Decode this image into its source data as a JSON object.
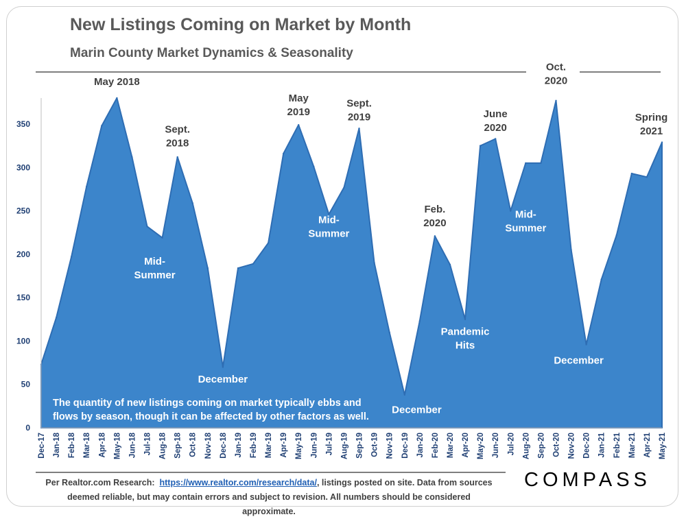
{
  "header": {
    "title": "New Listings Coming on Market by Month",
    "subtitle": "Marin County Market Dynamics & Seasonality"
  },
  "footer": {
    "prefix": "Per Realtor.com Research:",
    "link": "https://www.realtor.com/research/data/",
    "line1_suffix": ", listings posted on site. Data from sources",
    "line2": "deemed reliable, but may contain errors and subject to revision. All numbers should be considered approximate."
  },
  "brand": {
    "logo": "COMPASS"
  },
  "colors": {
    "area": "#3c85cb",
    "area_edge": "#2e6db3",
    "axis_text": "#1f3f73",
    "annotation_dark": "#404040",
    "annotation_light": "#ffffff",
    "rule": "#7f7f7f"
  },
  "chart_data": {
    "type": "area",
    "title": "New Listings Coming on Market by Month",
    "ylim": [
      0,
      380
    ],
    "yticks": [
      0,
      50,
      100,
      150,
      200,
      250,
      300,
      350
    ],
    "grid": false,
    "x": [
      "Dec-17",
      "Jan-18",
      "Feb-18",
      "Mar-18",
      "Apr-18",
      "May-18",
      "Jun-18",
      "Jul-18",
      "Aug-18",
      "Sep-18",
      "Oct-18",
      "Nov-18",
      "Dec-18",
      "Jan-19",
      "Feb-19",
      "Mar-19",
      "Apr-19",
      "May-19",
      "Jun-19",
      "Jul-19",
      "Aug-19",
      "Sep-19",
      "Oct-19",
      "Nov-19",
      "Dec-19",
      "Jan-20",
      "Feb-20",
      "Mar-20",
      "Apr-20",
      "May-20",
      "Jun-20",
      "Jul-20",
      "Aug-20",
      "Sep-20",
      "Oct-20",
      "Nov-20",
      "Dec-20",
      "Jan-21",
      "Feb-21",
      "Mar-21",
      "Apr-21",
      "May-21"
    ],
    "series": [
      {
        "values": [
          73,
          127,
          197,
          278,
          348,
          380,
          312,
          232,
          219,
          312,
          259,
          184,
          70,
          184,
          189,
          213,
          316,
          349,
          301,
          246,
          277,
          345,
          190,
          110,
          38,
          123,
          221,
          188,
          125,
          325,
          333,
          250,
          305,
          305,
          377,
          205,
          96,
          171,
          222,
          293,
          289,
          329
        ]
      }
    ],
    "annotations": [
      {
        "text": [
          "May 2018"
        ],
        "color": "dark",
        "index": 5,
        "value": 395
      },
      {
        "text": [
          "Sept.",
          "2018"
        ],
        "color": "dark",
        "index": 9,
        "value": 340
      },
      {
        "text": [
          "Mid-",
          "Summer"
        ],
        "color": "light",
        "index": 7.5,
        "value": 188
      },
      {
        "text": [
          "December"
        ],
        "color": "light",
        "index": 12,
        "value": 52
      },
      {
        "text": [
          "May",
          "2019"
        ],
        "color": "dark",
        "index": 17,
        "value": 376
      },
      {
        "text": [
          "Sept.",
          "2019"
        ],
        "color": "dark",
        "index": 21,
        "value": 370
      },
      {
        "text": [
          "Mid-",
          "Summer"
        ],
        "color": "light",
        "index": 19,
        "value": 236
      },
      {
        "text": [
          "December"
        ],
        "color": "light",
        "index": 24.8,
        "value": 17
      },
      {
        "text": [
          "Feb.",
          "2020"
        ],
        "color": "dark",
        "index": 26,
        "value": 248
      },
      {
        "text": [
          "Pandemic",
          "Hits"
        ],
        "color": "light",
        "index": 28,
        "value": 107
      },
      {
        "text": [
          "June",
          "2020"
        ],
        "color": "dark",
        "index": 30,
        "value": 358
      },
      {
        "text": [
          "Mid-",
          "Summer"
        ],
        "color": "light",
        "index": 32,
        "value": 242
      },
      {
        "text": [
          "Oct.",
          "2020"
        ],
        "color": "dark",
        "index": 34,
        "value": 412
      },
      {
        "text": [
          "December"
        ],
        "color": "light",
        "index": 35.5,
        "value": 74
      },
      {
        "text": [
          "Spring",
          "2021"
        ],
        "color": "dark",
        "index": 40.3,
        "value": 354
      }
    ],
    "note": [
      "The quantity of new listings coming on market typically ebbs and",
      "flows by season, though it can be affected by other factors as well."
    ]
  }
}
